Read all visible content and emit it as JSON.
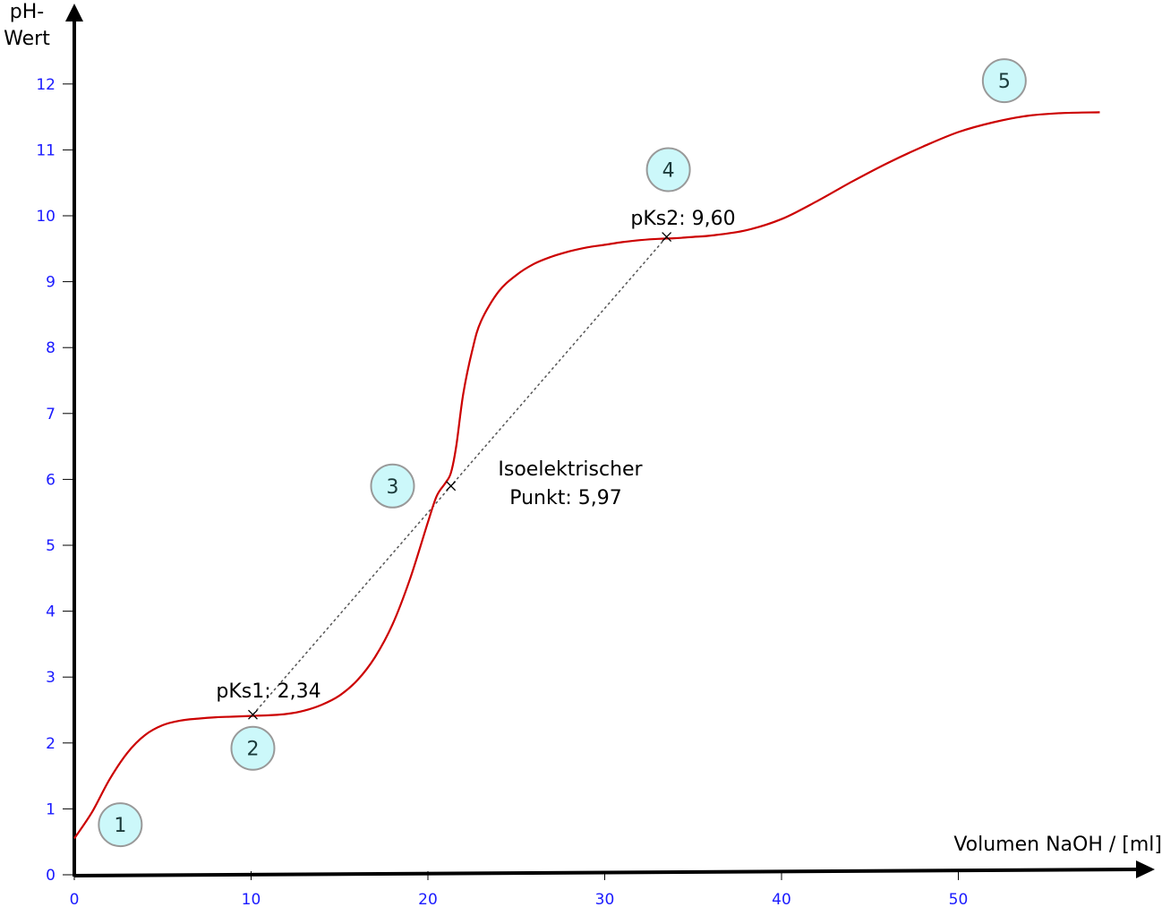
{
  "chart_data": {
    "type": "line",
    "xlabel": "Volumen NaOH / [ml]",
    "ylabel_line1": "pH-",
    "ylabel_line2": "Wert",
    "x_ticks": [
      0,
      10,
      20,
      30,
      40,
      50
    ],
    "y_ticks": [
      0,
      1,
      2,
      3,
      4,
      5,
      6,
      7,
      8,
      9,
      10,
      11,
      12
    ],
    "xlim": [
      0,
      60
    ],
    "ylim": [
      0,
      13
    ],
    "grid": false,
    "series": [
      {
        "color": "#cc0000",
        "x": [
          0,
          1,
          2,
          3,
          4,
          5,
          6,
          7,
          8,
          9,
          10,
          11,
          12,
          13,
          14,
          15,
          16,
          17,
          18,
          19,
          20,
          20.5,
          21,
          21.3,
          21.6,
          22,
          22.5,
          23,
          24,
          25,
          26,
          27,
          28,
          29,
          30,
          31,
          32,
          33,
          34,
          35,
          36,
          38,
          40,
          42,
          44,
          46,
          48,
          50,
          52,
          54,
          56,
          58
        ],
        "y": [
          0.55,
          0.95,
          1.45,
          1.85,
          2.12,
          2.27,
          2.34,
          2.37,
          2.39,
          2.4,
          2.41,
          2.42,
          2.44,
          2.49,
          2.58,
          2.72,
          2.95,
          3.3,
          3.8,
          4.5,
          5.35,
          5.75,
          5.95,
          6.1,
          6.5,
          7.3,
          7.95,
          8.4,
          8.85,
          9.1,
          9.27,
          9.38,
          9.46,
          9.52,
          9.56,
          9.6,
          9.63,
          9.65,
          9.66,
          9.68,
          9.7,
          9.78,
          9.95,
          10.22,
          10.52,
          10.8,
          11.05,
          11.27,
          11.42,
          11.52,
          11.56,
          11.57
        ]
      }
    ],
    "annotations": [
      {
        "id": "pks1",
        "label": "pKs1: 2,34",
        "x": 10.1,
        "y": 2.43
      },
      {
        "id": "iep",
        "label_line1": "Isoelektrischer",
        "label_line2": "Punkt: 5,97",
        "x": 21.3,
        "y": 5.9
      },
      {
        "id": "pks2",
        "label": "pKs2: 9,60",
        "x": 33.5,
        "y": 9.68
      }
    ],
    "markers": [
      {
        "label": "1",
        "x": 2.6,
        "y": 0.76
      },
      {
        "label": "2",
        "x": 10.1,
        "y": 1.92
      },
      {
        "label": "3",
        "x": 18,
        "y": 5.9
      },
      {
        "label": "4",
        "x": 33.6,
        "y": 10.7
      },
      {
        "label": "5",
        "x": 52.6,
        "y": 12.05
      }
    ],
    "colors": {
      "curve": "#cc0000",
      "ticks": "#1a1aff",
      "marker_fill": "#ccf8fa",
      "marker_stroke": "#999999",
      "connector": "#555555"
    }
  }
}
